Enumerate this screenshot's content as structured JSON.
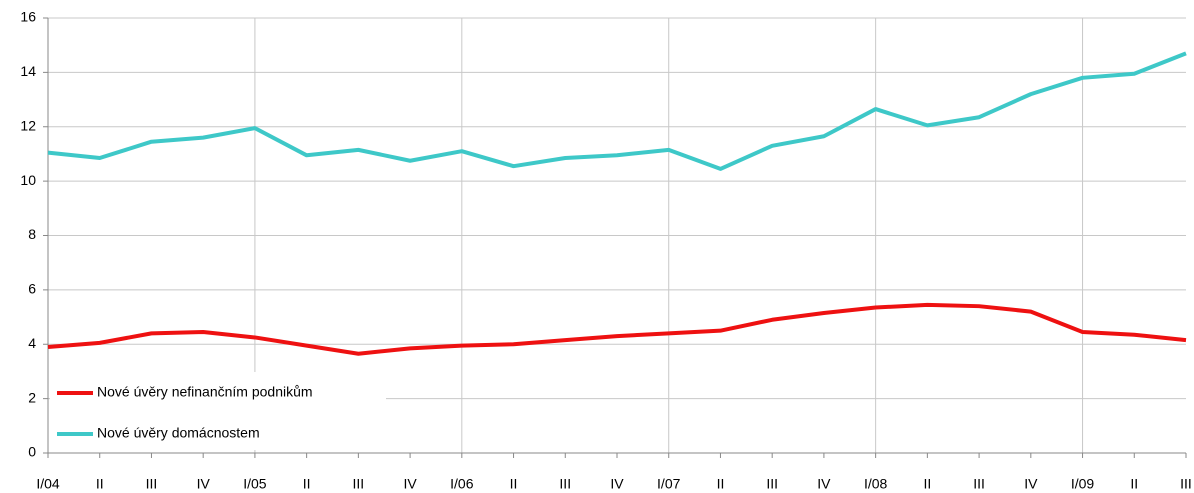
{
  "chart_data": {
    "type": "line",
    "categories": [
      "I/04",
      "II",
      "III",
      "IV",
      "I/05",
      "II",
      "III",
      "IV",
      "I/06",
      "II",
      "III",
      "IV",
      "I/07",
      "II",
      "III",
      "IV",
      "I/08",
      "II",
      "III",
      "IV",
      "I/09",
      "II",
      "III"
    ],
    "series": [
      {
        "name": "Nové úvěry nefinančním podnikům",
        "color": "#ee1111",
        "values": [
          3.9,
          4.05,
          4.4,
          4.45,
          4.25,
          3.95,
          3.65,
          3.85,
          3.95,
          4.0,
          4.15,
          4.3,
          4.4,
          4.5,
          4.9,
          5.15,
          5.35,
          5.45,
          5.4,
          5.2,
          4.45,
          4.35,
          4.15
        ]
      },
      {
        "name": "Nové úvěry domácnostem",
        "color": "#3ec8c8",
        "values": [
          11.05,
          10.85,
          11.45,
          11.6,
          11.95,
          10.95,
          11.15,
          10.75,
          11.1,
          10.55,
          10.85,
          10.95,
          11.15,
          10.45,
          11.3,
          11.65,
          12.65,
          12.05,
          12.35,
          13.2,
          13.8,
          13.95,
          14.7
        ]
      }
    ],
    "ylim": [
      0,
      16
    ],
    "yticks": [
      0,
      2,
      4,
      6,
      8,
      10,
      12,
      14,
      16
    ],
    "grid": true,
    "xgrid": true,
    "legend": "lower left"
  }
}
